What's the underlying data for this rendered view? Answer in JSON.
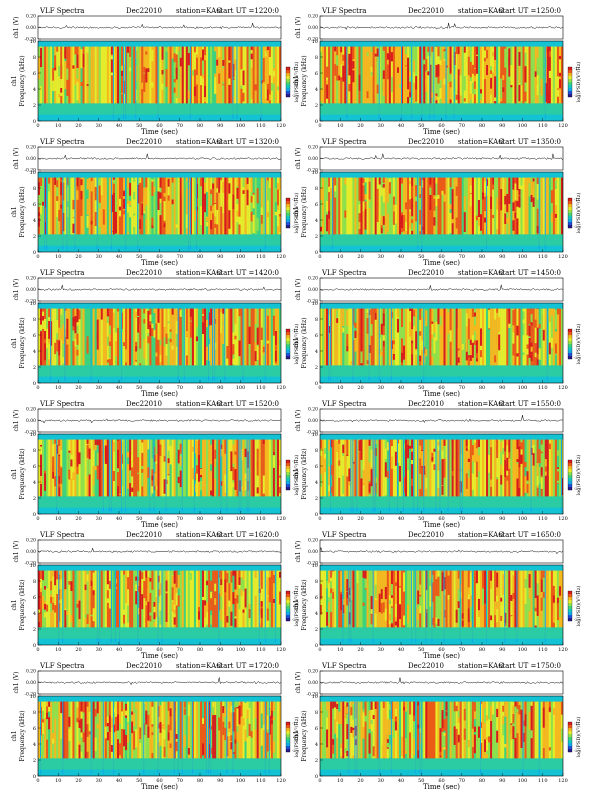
{
  "chart_data": [
    {
      "type": "heatmap",
      "title": "VLF Spectra",
      "date": "Dec22010",
      "station": "station=KAG",
      "start_ut": "start UT =1220:0",
      "xlabel": "Time (sec)",
      "ylabel": "Frequency (kHz)",
      "channel_label": "ch1",
      "wave_label": "ch1 (V)",
      "wave_ticks": [
        "0.20",
        "0.00",
        "-0.20"
      ],
      "wave_ylim": [
        -0.2,
        0.2
      ],
      "xlim": [
        0,
        120
      ],
      "ylim": [
        0,
        10
      ],
      "x_ticks": [
        "0",
        "10",
        "20",
        "30",
        "40",
        "50",
        "60",
        "70",
        "80",
        "90",
        "100",
        "110",
        "120"
      ],
      "y_ticks": [
        "0",
        "2",
        "4",
        "6",
        "8",
        "10"
      ],
      "colorbar_label": "log(PSD)(V²/Hz)",
      "colorbar_ticks": [
        "-1",
        "-2"
      ]
    },
    {
      "type": "heatmap",
      "title": "VLF Spectra",
      "date": "Dec22010",
      "station": "station=KAG",
      "start_ut": "start UT =1250:0",
      "xlabel": "Time (sec)",
      "ylabel": "Frequency (kHz)",
      "channel_label": "ch1",
      "wave_label": "ch1 (V)",
      "wave_ticks": [
        "0.20",
        "0.00",
        "-0.20"
      ],
      "wave_ylim": [
        -0.2,
        0.2
      ],
      "xlim": [
        0,
        120
      ],
      "ylim": [
        0,
        10
      ],
      "x_ticks": [
        "0",
        "10",
        "20",
        "30",
        "40",
        "50",
        "60",
        "70",
        "80",
        "90",
        "100",
        "110",
        "120"
      ],
      "y_ticks": [
        "0",
        "2",
        "4",
        "6",
        "8",
        "10"
      ],
      "colorbar_label": "log(PSD)(V²/Hz)",
      "colorbar_ticks": [
        "-1",
        "-2"
      ]
    },
    {
      "type": "heatmap",
      "title": "VLF Spectra",
      "date": "Dec22010",
      "station": "station=KAG",
      "start_ut": "start UT =1320:0",
      "xlabel": "Time (sec)",
      "ylabel": "Frequency (kHz)",
      "channel_label": "ch1",
      "wave_label": "ch1 (V)",
      "wave_ticks": [
        "0.20",
        "0.00",
        "-0.20"
      ],
      "wave_ylim": [
        -0.2,
        0.2
      ],
      "xlim": [
        0,
        120
      ],
      "ylim": [
        0,
        10
      ],
      "x_ticks": [
        "0",
        "10",
        "20",
        "30",
        "40",
        "50",
        "60",
        "70",
        "80",
        "90",
        "100",
        "110",
        "120"
      ],
      "y_ticks": [
        "0",
        "2",
        "4",
        "6",
        "8",
        "10"
      ],
      "colorbar_label": "log(PSD)(V²/Hz)",
      "colorbar_ticks": [
        "-1",
        "-2"
      ]
    },
    {
      "type": "heatmap",
      "title": "VLF Spectra",
      "date": "Dec22010",
      "station": "station=KAG",
      "start_ut": "start UT =1350:0",
      "xlabel": "Time (sec)",
      "ylabel": "Frequency (kHz)",
      "channel_label": "ch1",
      "wave_label": "ch1 (V)",
      "wave_ticks": [
        "0.20",
        "0.00",
        "-0.20"
      ],
      "wave_ylim": [
        -0.2,
        0.2
      ],
      "xlim": [
        0,
        120
      ],
      "ylim": [
        0,
        10
      ],
      "x_ticks": [
        "0",
        "10",
        "20",
        "30",
        "40",
        "50",
        "60",
        "70",
        "80",
        "90",
        "100",
        "110",
        "120"
      ],
      "y_ticks": [
        "0",
        "2",
        "4",
        "6",
        "8",
        "10"
      ],
      "colorbar_label": "log(PSD)(V²/Hz)",
      "colorbar_ticks": [
        "-1",
        "-2"
      ]
    },
    {
      "type": "heatmap",
      "title": "VLF Spectra",
      "date": "Dec22010",
      "station": "station=KAG",
      "start_ut": "start UT =1420:0",
      "xlabel": "Time (sec)",
      "ylabel": "Frequency (kHz)",
      "channel_label": "ch1",
      "wave_label": "ch1 (V)",
      "wave_ticks": [
        "0.20",
        "0.00",
        "-0.20"
      ],
      "wave_ylim": [
        -0.2,
        0.2
      ],
      "xlim": [
        0,
        120
      ],
      "ylim": [
        0,
        10
      ],
      "x_ticks": [
        "0",
        "10",
        "20",
        "30",
        "40",
        "50",
        "60",
        "70",
        "80",
        "90",
        "100",
        "110",
        "120"
      ],
      "y_ticks": [
        "0",
        "2",
        "4",
        "6",
        "8",
        "10"
      ],
      "colorbar_label": "log(PSD)(V²/Hz)",
      "colorbar_ticks": [
        "-1",
        "-2"
      ]
    },
    {
      "type": "heatmap",
      "title": "VLF Spectra",
      "date": "Dec22010",
      "station": "station=KAG",
      "start_ut": "start UT =1450:0",
      "xlabel": "Time (sec)",
      "ylabel": "Frequency (kHz)",
      "channel_label": "ch1",
      "wave_label": "ch1 (V)",
      "wave_ticks": [
        "0.20",
        "0.00",
        "-0.20"
      ],
      "wave_ylim": [
        -0.2,
        0.2
      ],
      "xlim": [
        0,
        120
      ],
      "ylim": [
        0,
        10
      ],
      "x_ticks": [
        "0",
        "10",
        "20",
        "30",
        "40",
        "50",
        "60",
        "70",
        "80",
        "90",
        "100",
        "110",
        "120"
      ],
      "y_ticks": [
        "0",
        "2",
        "4",
        "6",
        "8",
        "10"
      ],
      "colorbar_label": "log(PSD)(V²/Hz)",
      "colorbar_ticks": [
        "-1",
        "-2"
      ]
    },
    {
      "type": "heatmap",
      "title": "VLF Spectra",
      "date": "Dec22010",
      "station": "station=KAG",
      "start_ut": "start UT =1520:0",
      "xlabel": "Time (sec)",
      "ylabel": "Frequency (kHz)",
      "channel_label": "ch1",
      "wave_label": "ch1 (V)",
      "wave_ticks": [
        "0.20",
        "0.00",
        "-0.20"
      ],
      "wave_ylim": [
        -0.2,
        0.2
      ],
      "xlim": [
        0,
        120
      ],
      "ylim": [
        0,
        10
      ],
      "x_ticks": [
        "0",
        "10",
        "20",
        "30",
        "40",
        "50",
        "60",
        "70",
        "80",
        "90",
        "100",
        "110",
        "120"
      ],
      "y_ticks": [
        "0",
        "2",
        "4",
        "6",
        "8",
        "10"
      ],
      "colorbar_label": "log(PSD)(V²/Hz)",
      "colorbar_ticks": [
        "-1",
        "-2"
      ]
    },
    {
      "type": "heatmap",
      "title": "VLF Spectra",
      "date": "Dec22010",
      "station": "station=KAG",
      "start_ut": "start UT =1550:0",
      "xlabel": "Time (sec)",
      "ylabel": "Frequency (kHz)",
      "channel_label": "ch1",
      "wave_label": "ch1 (V)",
      "wave_ticks": [
        "0.20",
        "0.00",
        "-0.20"
      ],
      "wave_ylim": [
        -0.2,
        0.2
      ],
      "xlim": [
        0,
        120
      ],
      "ylim": [
        0,
        10
      ],
      "x_ticks": [
        "0",
        "10",
        "20",
        "30",
        "40",
        "50",
        "60",
        "70",
        "80",
        "90",
        "100",
        "110",
        "120"
      ],
      "y_ticks": [
        "0",
        "2",
        "4",
        "6",
        "8",
        "10"
      ],
      "colorbar_label": "log(PSD)(V²/Hz)",
      "colorbar_ticks": [
        "-1",
        "-2"
      ]
    },
    {
      "type": "heatmap",
      "title": "VLF Spectra",
      "date": "Dec22010",
      "station": "station=KAG",
      "start_ut": "start UT =1620:0",
      "xlabel": "Time (sec)",
      "ylabel": "Frequency (kHz)",
      "channel_label": "ch1",
      "wave_label": "ch1 (V)",
      "wave_ticks": [
        "0.20",
        "0.00",
        "-0.20"
      ],
      "wave_ylim": [
        -0.2,
        0.2
      ],
      "xlim": [
        0,
        120
      ],
      "ylim": [
        0,
        10
      ],
      "x_ticks": [
        "0",
        "10",
        "20",
        "30",
        "40",
        "50",
        "60",
        "70",
        "80",
        "90",
        "100",
        "110",
        "120"
      ],
      "y_ticks": [
        "0",
        "2",
        "4",
        "6",
        "8",
        "10"
      ],
      "colorbar_label": "log(PSD)(V²/Hz)",
      "colorbar_ticks": [
        "-1",
        "-2"
      ]
    },
    {
      "type": "heatmap",
      "title": "VLF Spectra",
      "date": "Dec22010",
      "station": "station=KAG",
      "start_ut": "start UT =1650:0",
      "xlabel": "Time (sec)",
      "ylabel": "Frequency (kHz)",
      "channel_label": "ch1",
      "wave_label": "ch1 (V)",
      "wave_ticks": [
        "0.20",
        "0.00",
        "-0.20"
      ],
      "wave_ylim": [
        -0.2,
        0.2
      ],
      "xlim": [
        0,
        120
      ],
      "ylim": [
        0,
        10
      ],
      "x_ticks": [
        "0",
        "10",
        "20",
        "30",
        "40",
        "50",
        "60",
        "70",
        "80",
        "90",
        "100",
        "110",
        "120"
      ],
      "y_ticks": [
        "0",
        "2",
        "4",
        "6",
        "8",
        "10"
      ],
      "colorbar_label": "log(PSD)(V²/Hz)",
      "colorbar_ticks": [
        "-1",
        "-2"
      ]
    },
    {
      "type": "heatmap",
      "title": "VLF Spectra",
      "date": "Dec22010",
      "station": "station=KAG",
      "start_ut": "start UT =1720:0",
      "xlabel": "Time (sec)",
      "ylabel": "Frequency (kHz)",
      "channel_label": "ch1",
      "wave_label": "ch1 (V)",
      "wave_ticks": [
        "0.20",
        "0.00",
        "-0.20"
      ],
      "wave_ylim": [
        -0.2,
        0.2
      ],
      "xlim": [
        0,
        120
      ],
      "ylim": [
        0,
        10
      ],
      "x_ticks": [
        "0",
        "10",
        "20",
        "30",
        "40",
        "50",
        "60",
        "70",
        "80",
        "90",
        "100",
        "110",
        "120"
      ],
      "y_ticks": [
        "0",
        "2",
        "4",
        "6",
        "8",
        "10"
      ],
      "colorbar_label": "log(PSD)(V²/Hz)",
      "colorbar_ticks": [
        "-1",
        "-2"
      ]
    },
    {
      "type": "heatmap",
      "title": "VLF Spectra",
      "date": "Dec22010",
      "station": "station=KAG",
      "start_ut": "start UT =1750:0",
      "xlabel": "Time (sec)",
      "ylabel": "Frequency (kHz)",
      "channel_label": "ch1",
      "wave_label": "ch1 (V)",
      "wave_ticks": [
        "0.20",
        "0.00",
        "-0.20"
      ],
      "wave_ylim": [
        -0.2,
        0.2
      ],
      "xlim": [
        0,
        120
      ],
      "ylim": [
        0,
        10
      ],
      "x_ticks": [
        "0",
        "10",
        "20",
        "30",
        "40",
        "50",
        "60",
        "70",
        "80",
        "90",
        "100",
        "110",
        "120"
      ],
      "y_ticks": [
        "0",
        "2",
        "4",
        "6",
        "8",
        "10"
      ],
      "colorbar_label": "log(PSD)(V²/Hz)",
      "colorbar_ticks": [
        "-1",
        "-2"
      ]
    }
  ],
  "colors": {
    "colormap": [
      "#2a1a8c",
      "#1e4fd8",
      "#13a8e8",
      "#12c9c0",
      "#3fd27a",
      "#8fe04a",
      "#e6ec2a",
      "#f5b81e",
      "#ec5a18",
      "#d81c1c"
    ],
    "background_band": "#13c3d4",
    "axis": "#000000"
  }
}
